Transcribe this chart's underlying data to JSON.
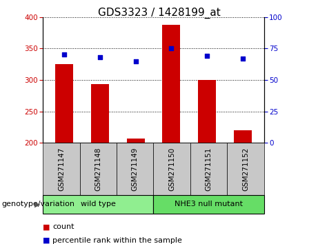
{
  "title": "GDS3323 / 1428199_at",
  "categories": [
    "GSM271147",
    "GSM271148",
    "GSM271149",
    "GSM271150",
    "GSM271151",
    "GSM271152"
  ],
  "bar_values": [
    325,
    293,
    207,
    388,
    300,
    220
  ],
  "scatter_values": [
    70,
    68,
    65,
    75,
    69,
    67
  ],
  "bar_color": "#cc0000",
  "scatter_color": "#0000cc",
  "ylim_left": [
    200,
    400
  ],
  "ylim_right": [
    0,
    100
  ],
  "yticks_left": [
    200,
    250,
    300,
    350,
    400
  ],
  "yticks_right": [
    0,
    25,
    50,
    75,
    100
  ],
  "groups": [
    {
      "label": "wild type",
      "indices": [
        0,
        1,
        2
      ],
      "color": "#90ee90"
    },
    {
      "label": "NHE3 null mutant",
      "indices": [
        3,
        4,
        5
      ],
      "color": "#66dd66"
    }
  ],
  "group_label": "genotype/variation",
  "legend_count_label": "count",
  "legend_percentile_label": "percentile rank within the sample",
  "tick_box_color": "#c8c8c8",
  "title_fontsize": 11,
  "tick_fontsize": 7.5,
  "label_fontsize": 8
}
